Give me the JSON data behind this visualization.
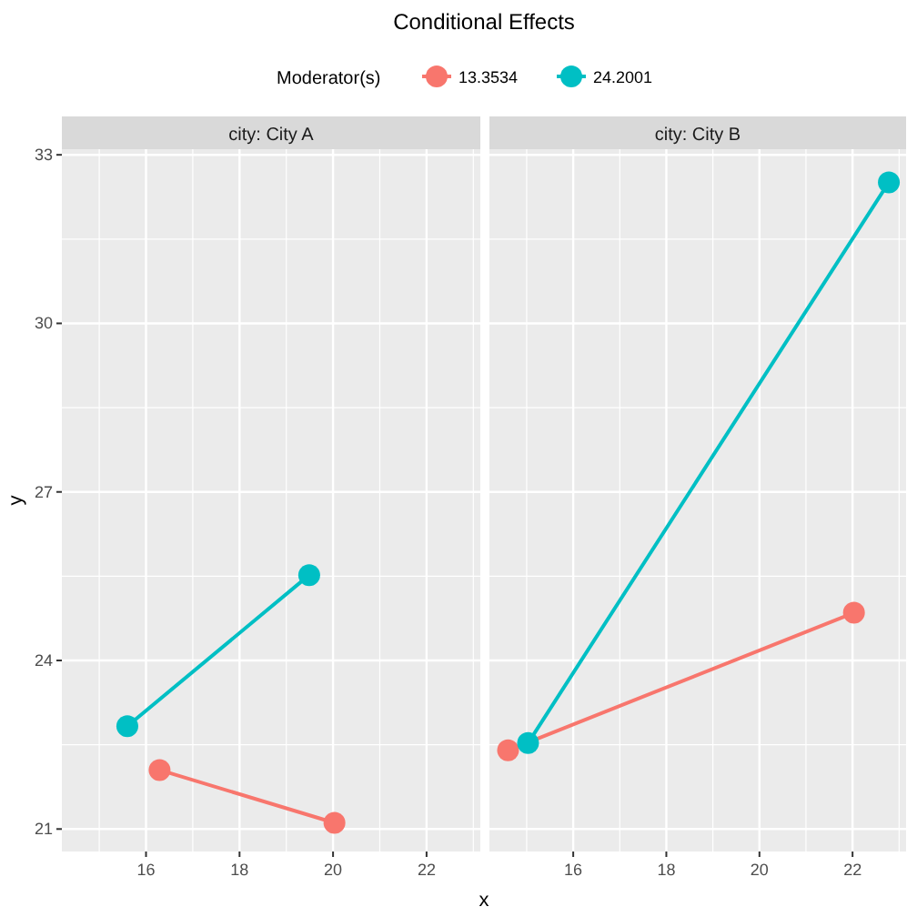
{
  "chart_data": [
    {
      "type": "line",
      "title": "Conditional Effects",
      "subtitle": "city: City A",
      "xlabel": "x",
      "ylabel": "y",
      "legend_title": "Moderator(s)",
      "legend": "top",
      "marker": "circle",
      "grid": true,
      "xlim": [
        14.2,
        23.15
      ],
      "xticks": [
        16,
        18,
        20,
        22
      ],
      "ylim": [
        20.6,
        33.1
      ],
      "yticks": [
        21,
        24,
        27,
        30,
        33
      ],
      "series": [
        {
          "name": "13.3534",
          "color": "#f8766d",
          "x": [
            16.29,
            20.03
          ],
          "values": [
            22.05,
            21.11
          ]
        },
        {
          "name": "24.2001",
          "color": "#00bfc4",
          "x": [
            15.6,
            19.49
          ],
          "values": [
            22.83,
            25.52
          ]
        }
      ]
    },
    {
      "type": "line",
      "subtitle": "city: City B",
      "marker": "circle",
      "grid": true,
      "tick_labels": "x",
      "xlim": [
        14.2,
        23.15
      ],
      "xticks": [
        16,
        18,
        20,
        22
      ],
      "ylim": [
        20.6,
        33.1
      ],
      "yticks": [
        21,
        24,
        27,
        30,
        33
      ],
      "series": [
        {
          "color": "#f8766d",
          "x": [
            14.6,
            22.03
          ],
          "values": [
            22.4,
            24.85
          ]
        },
        {
          "color": "#00bfc4",
          "x": [
            15.03,
            22.78
          ],
          "values": [
            22.53,
            32.51
          ]
        }
      ]
    }
  ]
}
